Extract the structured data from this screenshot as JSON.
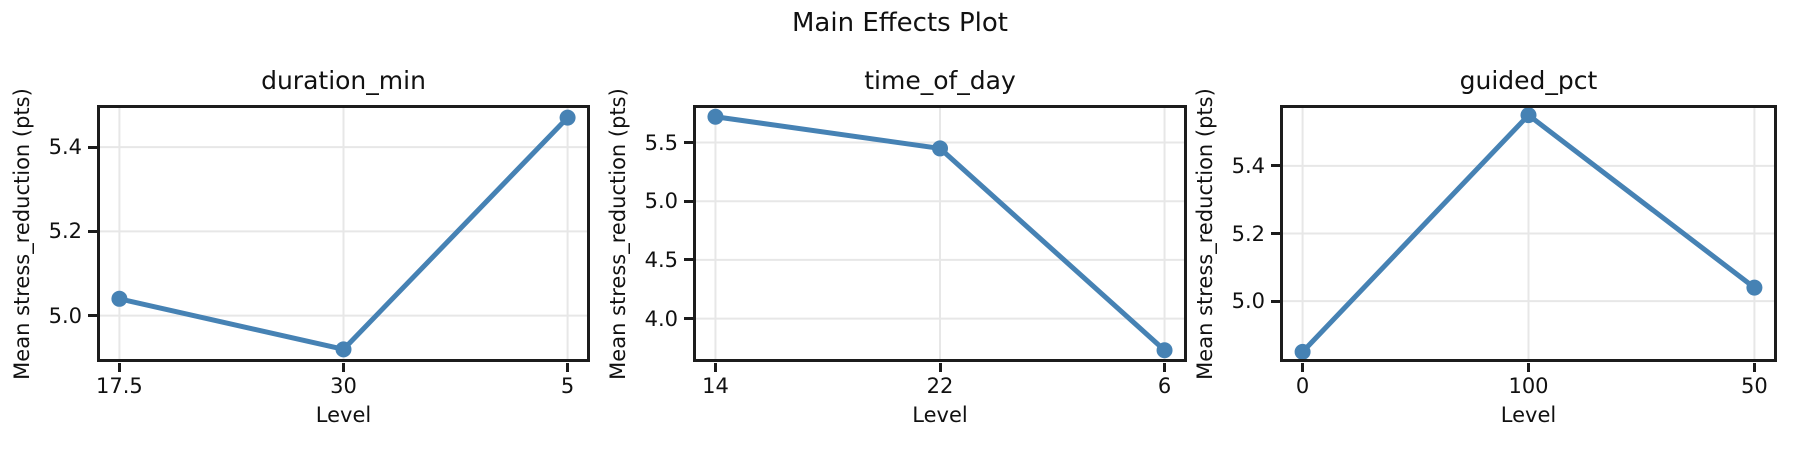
{
  "figure": {
    "suptitle": "Main Effects Plot"
  },
  "style": {
    "line_color": "#4682B4",
    "grid_color": "#e7e7e7",
    "spine_color": "#1c1c1c",
    "background": "#ffffff",
    "text_color": "#111111"
  },
  "chart_data": [
    {
      "type": "line",
      "title": "duration_min",
      "xlabel": "Level",
      "ylabel": "Mean stress_reduction (pts)",
      "categories": [
        "17.5",
        "30",
        "5"
      ],
      "values": [
        5.04,
        4.92,
        5.47
      ],
      "yticks": [
        5.0,
        5.2,
        5.4
      ],
      "ylim": [
        4.89,
        5.5
      ],
      "grid": true,
      "legend": "none",
      "marker": "circle"
    },
    {
      "type": "line",
      "title": "time_of_day",
      "xlabel": "Level",
      "ylabel": "Mean stress_reduction (pts)",
      "categories": [
        "14",
        "22",
        "6"
      ],
      "values": [
        5.72,
        5.45,
        3.73
      ],
      "yticks": [
        4.0,
        4.5,
        5.0,
        5.5
      ],
      "ylim": [
        3.63,
        5.82
      ],
      "grid": true,
      "legend": "none",
      "marker": "circle"
    },
    {
      "type": "line",
      "title": "guided_pct",
      "xlabel": "Level",
      "ylabel": "Mean stress_reduction (pts)",
      "categories": [
        "0",
        "100",
        "50"
      ],
      "values": [
        4.85,
        5.55,
        5.04
      ],
      "yticks": [
        5.0,
        5.2,
        5.4
      ],
      "ylim": [
        4.82,
        5.58
      ],
      "grid": true,
      "legend": "none",
      "marker": "circle"
    }
  ]
}
